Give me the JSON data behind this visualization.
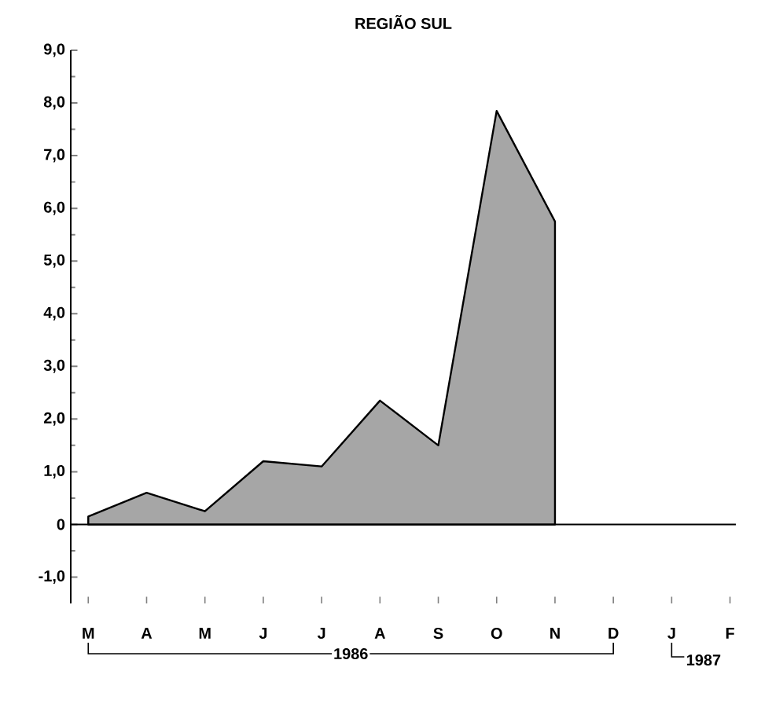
{
  "chart_data": {
    "type": "area",
    "title": "REGIÃO SUL",
    "categories": [
      "M",
      "A",
      "M",
      "J",
      "J",
      "A",
      "S",
      "O",
      "N",
      "D",
      "J",
      "F"
    ],
    "values": [
      0.15,
      0.6,
      0.25,
      1.2,
      1.1,
      2.35,
      1.5,
      7.85,
      5.75,
      null,
      null,
      null
    ],
    "color": "#000000",
    "ylim": [
      -1.5,
      9.0
    ],
    "yticks": [
      {
        "value": -1,
        "label": "-1,0"
      },
      0,
      {
        "value": 1,
        "label": "1,0"
      },
      {
        "value": 2,
        "label": "2,0"
      },
      {
        "value": 3,
        "label": "3,0"
      },
      {
        "value": 4,
        "label": "4,0"
      },
      {
        "value": 5,
        "label": "5,0"
      },
      {
        "value": 6,
        "label": "6,0"
      },
      {
        "value": 7,
        "label": "7,0"
      },
      {
        "value": 8,
        "label": "8,0"
      },
      {
        "value": 9,
        "label": "9,0"
      }
    ],
    "annotations": [
      "1986",
      "1987"
    ]
  }
}
